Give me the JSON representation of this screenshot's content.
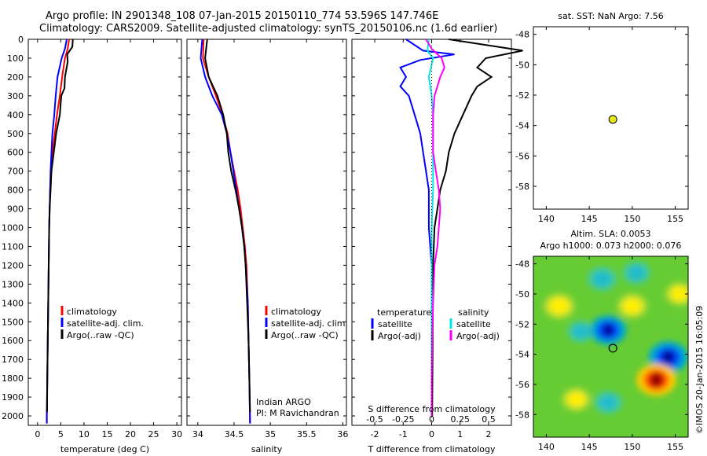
{
  "header": {
    "line1": "Argo profile: IN 2901348_108 07-Jan-2015 20150110_774 53.596S 147.746E",
    "line2": "Climatology: CARS2009. Satellite-adjusted climatology: synTS_20150106.nc (1.6d earlier)"
  },
  "colors": {
    "climatology": "#ff0000",
    "satellite": "#0000ff",
    "argo": "#000000",
    "sal_satellite": "#00e5e5",
    "sal_argo": "#ff00ff",
    "marker": "#e6e619"
  },
  "chart_data": [
    {
      "type": "line",
      "ylabel": "",
      "xlabel": "temperature (deg C)",
      "xlim": [
        -2,
        31
      ],
      "ylim": [
        2050,
        0
      ],
      "xticks": [
        0,
        5,
        10,
        15,
        20,
        25,
        30
      ],
      "yticks": [
        0,
        100,
        200,
        300,
        400,
        500,
        600,
        700,
        800,
        900,
        1000,
        1100,
        1200,
        1300,
        1400,
        1500,
        1600,
        1700,
        1800,
        1900,
        2000
      ],
      "legend": [
        "climatology",
        "satellite-adj. clim.",
        "Argo(..raw -QC)"
      ],
      "series": [
        {
          "name": "climatology",
          "color": "#ff0000",
          "points": [
            [
              6.8,
              0
            ],
            [
              6.5,
              50
            ],
            [
              5.9,
              100
            ],
            [
              5.3,
              200
            ],
            [
              4.8,
              300
            ],
            [
              4.2,
              400
            ],
            [
              3.7,
              500
            ],
            [
              3.2,
              600
            ],
            [
              2.9,
              700
            ],
            [
              2.7,
              800
            ],
            [
              2.6,
              900
            ],
            [
              2.5,
              1000
            ],
            [
              2.4,
              1200
            ],
            [
              2.3,
              1400
            ],
            [
              2.2,
              1600
            ],
            [
              2.1,
              1800
            ],
            [
              2.0,
              2000
            ],
            [
              2.0,
              2040
            ]
          ]
        },
        {
          "name": "satellite-adj. clim.",
          "color": "#0000ff",
          "points": [
            [
              6.3,
              0
            ],
            [
              5.9,
              50
            ],
            [
              5.2,
              100
            ],
            [
              4.3,
              200
            ],
            [
              3.9,
              300
            ],
            [
              3.6,
              400
            ],
            [
              3.2,
              500
            ],
            [
              3.0,
              600
            ],
            [
              2.8,
              700
            ],
            [
              2.7,
              800
            ],
            [
              2.6,
              900
            ],
            [
              2.5,
              1000
            ],
            [
              2.4,
              1200
            ],
            [
              2.3,
              1400
            ],
            [
              2.2,
              1600
            ],
            [
              2.1,
              1800
            ],
            [
              2.0,
              2000
            ],
            [
              2.0,
              2040
            ]
          ]
        },
        {
          "name": "Argo(..raw -QC)",
          "color": "#000000",
          "points": [
            [
              7.6,
              0
            ],
            [
              7.5,
              40
            ],
            [
              7.2,
              50
            ],
            [
              6.4,
              80
            ],
            [
              6.5,
              120
            ],
            [
              5.9,
              200
            ],
            [
              5.8,
              260
            ],
            [
              5.1,
              300
            ],
            [
              4.8,
              400
            ],
            [
              4.0,
              500
            ],
            [
              3.5,
              600
            ],
            [
              3.0,
              700
            ],
            [
              2.8,
              800
            ],
            [
              2.6,
              900
            ],
            [
              2.5,
              1000
            ],
            [
              2.4,
              1200
            ],
            [
              2.3,
              1400
            ],
            [
              2.2,
              1600
            ],
            [
              2.1,
              1800
            ],
            [
              2.05,
              1980
            ]
          ]
        }
      ]
    },
    {
      "type": "line",
      "ylabel": "",
      "xlabel": "salinity",
      "xlim": [
        33.85,
        36.05
      ],
      "ylim": [
        2050,
        0
      ],
      "xticks": [
        34,
        34.5,
        35,
        35.5,
        36
      ],
      "legend": [
        "climatology",
        "satellite-adj. clim.",
        "Argo(..raw -QC)"
      ],
      "annotation": [
        "Indian ARGO",
        "PI: M Ravichandran"
      ],
      "series": [
        {
          "name": "climatology",
          "color": "#ff0000",
          "points": [
            [
              34.08,
              0
            ],
            [
              34.07,
              100
            ],
            [
              34.15,
              200
            ],
            [
              34.25,
              300
            ],
            [
              34.34,
              400
            ],
            [
              34.41,
              500
            ],
            [
              34.45,
              600
            ],
            [
              34.5,
              700
            ],
            [
              34.55,
              800
            ],
            [
              34.59,
              900
            ],
            [
              34.62,
              1000
            ],
            [
              34.65,
              1100
            ],
            [
              34.67,
              1200
            ],
            [
              34.69,
              1400
            ],
            [
              34.7,
              1600
            ],
            [
              34.71,
              1800
            ],
            [
              34.72,
              2040
            ]
          ]
        },
        {
          "name": "satellite-adj. clim.",
          "color": "#0000ff",
          "points": [
            [
              34.06,
              0
            ],
            [
              34.04,
              100
            ],
            [
              34.1,
              200
            ],
            [
              34.2,
              300
            ],
            [
              34.33,
              400
            ],
            [
              34.4,
              500
            ],
            [
              34.45,
              600
            ],
            [
              34.49,
              700
            ],
            [
              34.53,
              800
            ],
            [
              34.57,
              900
            ],
            [
              34.61,
              1000
            ],
            [
              34.64,
              1100
            ],
            [
              34.66,
              1200
            ],
            [
              34.69,
              1400
            ],
            [
              34.7,
              1600
            ],
            [
              34.71,
              1800
            ],
            [
              34.72,
              2040
            ]
          ]
        },
        {
          "name": "Argo(..raw -QC)",
          "color": "#000000",
          "points": [
            [
              34.13,
              0
            ],
            [
              34.1,
              100
            ],
            [
              34.15,
              200
            ],
            [
              34.27,
              300
            ],
            [
              34.35,
              400
            ],
            [
              34.4,
              500
            ],
            [
              34.42,
              600
            ],
            [
              34.46,
              700
            ],
            [
              34.52,
              800
            ],
            [
              34.57,
              900
            ],
            [
              34.61,
              1000
            ],
            [
              34.64,
              1100
            ],
            [
              34.66,
              1200
            ],
            [
              34.68,
              1400
            ],
            [
              34.7,
              1600
            ],
            [
              34.71,
              1800
            ],
            [
              34.72,
              1980
            ]
          ]
        }
      ]
    },
    {
      "type": "line",
      "xlabel": "T difference from climatology",
      "xlabel2": "S difference from climatology",
      "xlim": [
        -2.8,
        2.8
      ],
      "ylim": [
        2050,
        0
      ],
      "xticks": [
        -2,
        -1,
        0,
        1,
        2
      ],
      "xtick_labels": [
        "-2",
        "-1",
        "0",
        "1",
        "2"
      ],
      "xticks_top": [
        -0.5,
        -0.25,
        0,
        0.25,
        0.5
      ],
      "xtick_top_labels": [
        "-0.5",
        "-0.25",
        "0",
        "0.25",
        "0.5"
      ],
      "legend_temperature": [
        "temperature",
        "satellite",
        "Argo(-adj)"
      ],
      "legend_salinity": [
        "salinity",
        "satellite",
        "Argo(-adj)"
      ],
      "series": [
        {
          "name": "temperature satellite",
          "color": "#0000ff",
          "points": [
            [
              -0.9,
              0
            ],
            [
              -0.3,
              60
            ],
            [
              0.8,
              80
            ],
            [
              -0.4,
              110
            ],
            [
              -1.1,
              150
            ],
            [
              -0.9,
              200
            ],
            [
              -1.1,
              250
            ],
            [
              -0.8,
              300
            ],
            [
              -0.6,
              400
            ],
            [
              -0.4,
              500
            ],
            [
              -0.3,
              600
            ],
            [
              -0.2,
              700
            ],
            [
              -0.1,
              800
            ],
            [
              -0.1,
              1000
            ],
            [
              0,
              1200
            ],
            [
              0,
              2000
            ]
          ]
        },
        {
          "name": "temperature Argo(-adj)",
          "color": "#000000",
          "points": [
            [
              0.6,
              0
            ],
            [
              3.2,
              60
            ],
            [
              1.9,
              100
            ],
            [
              1.6,
              150
            ],
            [
              2.1,
              200
            ],
            [
              1.6,
              250
            ],
            [
              1.4,
              300
            ],
            [
              1.1,
              400
            ],
            [
              0.8,
              500
            ],
            [
              0.6,
              600
            ],
            [
              0.5,
              700
            ],
            [
              0.3,
              800
            ],
            [
              0.2,
              900
            ],
            [
              0.1,
              1000
            ],
            [
              0.05,
              1200
            ],
            [
              0.02,
              2000
            ]
          ]
        },
        {
          "name": "salinity satellite",
          "color": "#00e5e5",
          "points": [
            [
              -0.1,
              0
            ],
            [
              -0.15,
              60
            ],
            [
              0.05,
              100
            ],
            [
              -0.1,
              200
            ],
            [
              0.0,
              300
            ],
            [
              0.05,
              400
            ],
            [
              0.05,
              600
            ],
            [
              0.05,
              800
            ],
            [
              0.0,
              1000
            ],
            [
              0.0,
              1200
            ],
            [
              0.0,
              2000
            ]
          ]
        },
        {
          "name": "salinity Argo(-adj)",
          "color": "#ff00ff",
          "points": [
            [
              -0.2,
              0
            ],
            [
              0.0,
              50
            ],
            [
              0.35,
              100
            ],
            [
              0.45,
              150
            ],
            [
              0.3,
              200
            ],
            [
              0.1,
              300
            ],
            [
              0.05,
              400
            ],
            [
              0.05,
              600
            ],
            [
              0.15,
              700
            ],
            [
              0.25,
              800
            ],
            [
              0.3,
              900
            ],
            [
              0.25,
              1000
            ],
            [
              0.2,
              1100
            ],
            [
              0.1,
              1200
            ],
            [
              0.05,
              1400
            ],
            [
              0.02,
              1600
            ],
            [
              0.0,
              1800
            ],
            [
              0.0,
              2000
            ]
          ]
        }
      ]
    },
    {
      "type": "scatter",
      "title": "sat. SST: NaN Argo: 7.56",
      "xlim": [
        138.5,
        156.5
      ],
      "ylim": [
        -59.5,
        -47.5
      ],
      "xticks": [
        140,
        145,
        150,
        155
      ],
      "yticks": [
        -48,
        -50,
        -52,
        -54,
        -56,
        -58
      ],
      "points": [
        [
          147.746,
          -53.596
        ]
      ]
    },
    {
      "type": "heatmap",
      "title": "Altim. SLA: 0.0053",
      "subtitle": "Argo h1000: 0.073 h2000: 0.076",
      "xlim": [
        138.5,
        156.5
      ],
      "ylim": [
        -59.5,
        -47.5
      ],
      "xticks": [
        140,
        145,
        150,
        155
      ],
      "yticks": [
        -48,
        -50,
        -52,
        -54,
        -56,
        -58
      ],
      "marker": [
        147.746,
        -53.596
      ],
      "blobs": [
        {
          "lon": 146.5,
          "lat": -49.0,
          "level": -0.6
        },
        {
          "lon": 144.0,
          "lat": -52.5,
          "level": -0.4
        },
        {
          "lon": 147.2,
          "lat": -52.4,
          "level": -1.1
        },
        {
          "lon": 154.2,
          "lat": -54.2,
          "level": -1.3
        },
        {
          "lon": 152.8,
          "lat": -55.7,
          "level": 1.3
        },
        {
          "lon": 141.5,
          "lat": -50.8,
          "level": 0.7
        },
        {
          "lon": 150.0,
          "lat": -50.8,
          "level": 0.6
        },
        {
          "lon": 150.5,
          "lat": -48.6,
          "level": -0.5
        },
        {
          "lon": 155.5,
          "lat": -50.0,
          "level": 0.5
        },
        {
          "lon": 143.5,
          "lat": -57.0,
          "level": 0.5
        },
        {
          "lon": 147.2,
          "lat": -57.2,
          "level": -0.5
        }
      ]
    }
  ],
  "watermark": "©IMOS 20-Jan-2015 16:05:09"
}
